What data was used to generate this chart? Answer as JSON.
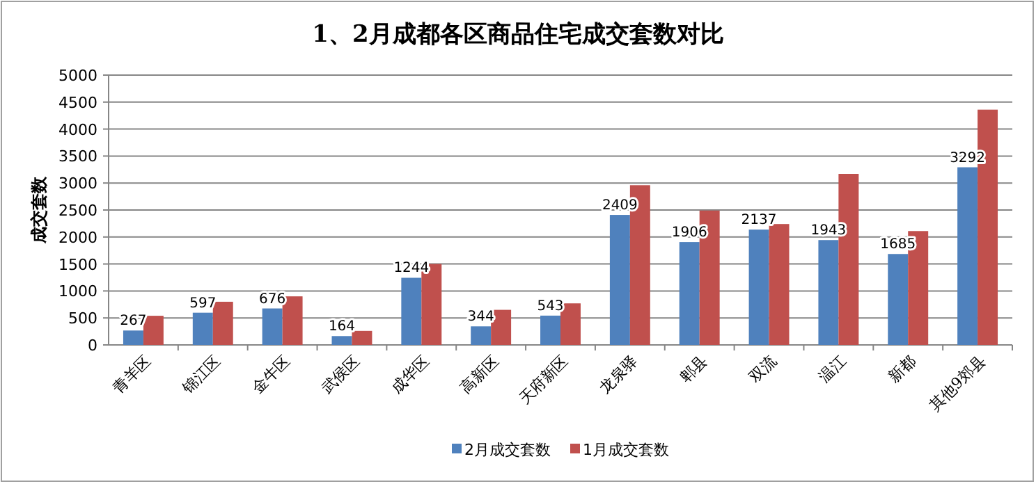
{
  "chart_data": {
    "type": "bar",
    "title": "1、2月成都各区商品住宅成交套数对比",
    "ylabel": "成交套数",
    "categories": [
      "青羊区",
      "锦江区",
      "金牛区",
      "武侯区",
      "成华区",
      "高新区",
      "天府新区",
      "龙泉驿",
      "郫县",
      "双流",
      "温江",
      "新都",
      "其他9郊县"
    ],
    "series": [
      {
        "name": "2月成交套数",
        "color": "#4f81bd",
        "values": [
          267,
          597,
          676,
          164,
          1244,
          344,
          543,
          2409,
          1906,
          2137,
          1943,
          1685,
          3292
        ],
        "value_labels": [
          "267",
          "597",
          "676",
          "164",
          "1244",
          "344",
          "543",
          "2409",
          "1906",
          "2137",
          "1943",
          "1685",
          "3292"
        ]
      },
      {
        "name": "1月成交套数",
        "color": "#c0504d",
        "values": [
          540,
          800,
          900,
          260,
          1500,
          650,
          770,
          2960,
          2490,
          2240,
          3170,
          2110,
          4360
        ]
      }
    ],
    "ylim": [
      0,
      5000
    ],
    "yticks": [
      0,
      500,
      1000,
      1500,
      2000,
      2500,
      3000,
      3500,
      4000,
      4500,
      5000
    ],
    "grid": "y",
    "legend": "bottom"
  }
}
